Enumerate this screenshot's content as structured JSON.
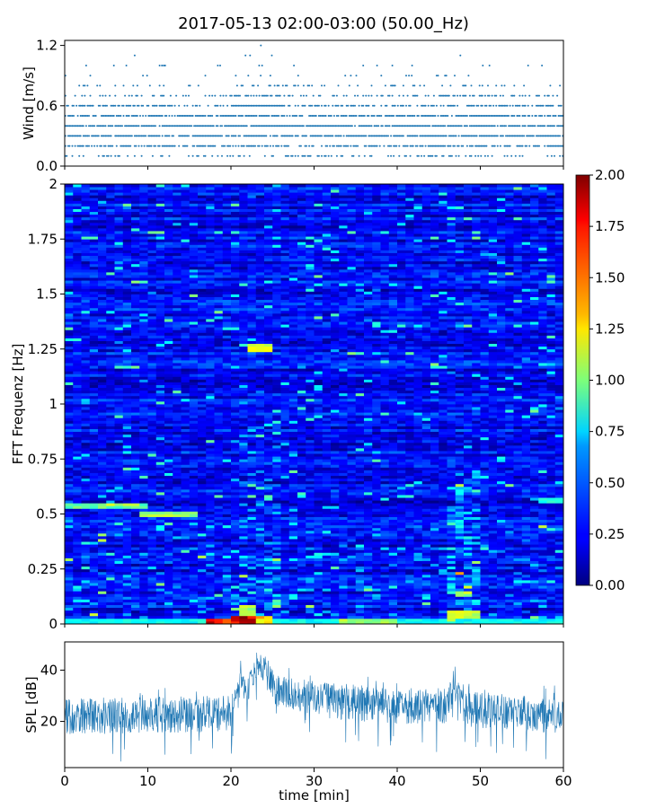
{
  "title": "2017-05-13 02:00-03:00 (50.00_Hz)",
  "chart_data": [
    {
      "panel": "wind",
      "type": "scatter",
      "ylabel": "Wind [m/s]",
      "xlim": [
        0,
        60
      ],
      "ylim": [
        0,
        1.25
      ],
      "yticks": [
        0.0,
        0.6,
        1.2
      ],
      "ytick_labels": [
        "0.0",
        "0.6",
        "1.2"
      ],
      "xticks": [
        0,
        10,
        20,
        30,
        40,
        50,
        60
      ],
      "wind_levels": [
        0.1,
        0.2,
        0.3,
        0.4,
        0.5,
        0.6,
        0.7,
        0.8,
        0.9,
        1.0,
        1.1,
        1.2
      ],
      "level_density": [
        0.35,
        0.7,
        0.85,
        0.9,
        0.8,
        0.6,
        0.3,
        0.12,
        0.05,
        0.03,
        0.005,
        0.002
      ],
      "notable_points": [
        {
          "x": 23.6,
          "y": 1.2
        },
        {
          "x": 22.3,
          "y": 1.1
        },
        {
          "x": 47.6,
          "y": 1.1
        },
        {
          "x": 11.7,
          "y": 1.0
        },
        {
          "x": 18.7,
          "y": 1.0
        },
        {
          "x": 23.4,
          "y": 1.0
        },
        {
          "x": 41.8,
          "y": 1.0
        },
        {
          "x": 50.3,
          "y": 1.0
        },
        {
          "x": 51.1,
          "y": 1.0
        }
      ],
      "marker_color": "#1f77b4"
    },
    {
      "panel": "spectrogram",
      "type": "heatmap",
      "ylabel": "FFT Frequenz [Hz]",
      "xlim": [
        0,
        60
      ],
      "ylim": [
        0,
        2
      ],
      "yticks": [
        0,
        0.25,
        0.5,
        0.75,
        1,
        1.25,
        1.5,
        1.75,
        2
      ],
      "ytick_labels": [
        "0",
        "0.25",
        "0.5",
        "0.75",
        "1",
        "1.25",
        "1.5",
        "1.75",
        "2"
      ],
      "xticks": [
        0,
        10,
        20,
        30,
        40,
        50,
        60
      ],
      "colormap": "jet",
      "colorbar": {
        "min": 0,
        "max": 2,
        "ticks": [
          "0.00",
          "0.25",
          "0.50",
          "0.75",
          "1.00",
          "1.25",
          "1.50",
          "1.75",
          "2.00"
        ]
      },
      "background_level": 0.25,
      "highlights": [
        {
          "t0": 17.0,
          "t1": 18.5,
          "f0": 0.0,
          "f1": 0.02,
          "value": 1.9
        },
        {
          "t0": 20.5,
          "t1": 23.0,
          "f0": 0.0,
          "f1": 0.03,
          "value": 1.95
        },
        {
          "t0": 18.5,
          "t1": 20.5,
          "f0": 0.0,
          "f1": 0.02,
          "value": 1.5
        },
        {
          "t0": 23.0,
          "t1": 25.0,
          "f0": 0.0,
          "f1": 0.03,
          "value": 1.4
        },
        {
          "t0": 21.5,
          "t1": 23.0,
          "f0": 0.03,
          "f1": 0.08,
          "value": 1.15
        },
        {
          "t0": 22.0,
          "t1": 25.0,
          "f0": 1.24,
          "f1": 1.27,
          "value": 1.25
        },
        {
          "t0": 0.0,
          "t1": 10.0,
          "f0": 0.53,
          "f1": 0.55,
          "value": 1.0
        },
        {
          "t0": 5.0,
          "t1": 9.0,
          "f0": 0.54,
          "f1": 0.55,
          "value": 1.2
        },
        {
          "t0": 9.0,
          "t1": 16.0,
          "f0": 0.49,
          "f1": 0.51,
          "value": 1.1
        },
        {
          "t0": 46.5,
          "t1": 50.0,
          "f0": 0.02,
          "f1": 0.06,
          "value": 1.2
        },
        {
          "t0": 47.0,
          "t1": 49.0,
          "f0": 0.12,
          "f1": 0.14,
          "value": 1.1
        },
        {
          "t0": 0.0,
          "t1": 60.0,
          "f0": 0.0,
          "f1": 0.02,
          "value": 0.8
        },
        {
          "t0": 33.0,
          "t1": 40.0,
          "f0": 0.0,
          "f1": 0.02,
          "value": 1.1
        },
        {
          "t0": 57.0,
          "t1": 60.0,
          "f0": 0.55,
          "f1": 0.57,
          "value": 0.85
        }
      ]
    },
    {
      "panel": "spl",
      "type": "line",
      "ylabel": "SPL [dB]",
      "xlabel": "time [min]",
      "xlim": [
        0,
        60
      ],
      "ylim": [
        2,
        51
      ],
      "yticks": [
        20,
        40
      ],
      "ytick_labels": [
        "20",
        "40"
      ],
      "xticks": [
        0,
        10,
        20,
        30,
        40,
        50,
        60
      ],
      "xtick_labels": [
        "0",
        "10",
        "20",
        "30",
        "40",
        "50",
        "60"
      ],
      "baseline_db": 22,
      "spread_db": 7,
      "envelope": [
        {
          "t": 0,
          "mean": 22,
          "spread": 7
        },
        {
          "t": 20,
          "mean": 23,
          "spread": 7
        },
        {
          "t": 21.2,
          "mean": 34,
          "spread": 6
        },
        {
          "t": 22.0,
          "mean": 33,
          "spread": 5
        },
        {
          "t": 23.5,
          "mean": 42,
          "spread": 5
        },
        {
          "t": 25.5,
          "mean": 32,
          "spread": 6
        },
        {
          "t": 32,
          "mean": 28,
          "spread": 7
        },
        {
          "t": 40,
          "mean": 26,
          "spread": 7
        },
        {
          "t": 46,
          "mean": 26,
          "spread": 7
        },
        {
          "t": 46.8,
          "mean": 34,
          "spread": 6
        },
        {
          "t": 48,
          "mean": 25,
          "spread": 7
        },
        {
          "t": 60,
          "mean": 22,
          "spread": 7
        }
      ],
      "line_color": "#1f77b4"
    }
  ]
}
